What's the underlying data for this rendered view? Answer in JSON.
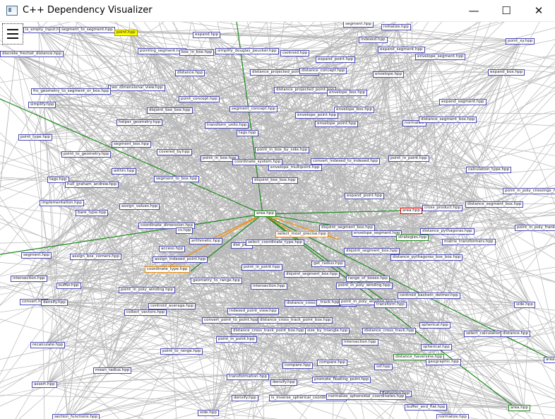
{
  "window": {
    "title": "C++ Dependency Visualizer",
    "minimize_glyph": "—",
    "maximize_glyph": "☐",
    "close_glyph": "✕"
  },
  "menu": {
    "icon": "hamburger-menu-icon"
  },
  "colors": {
    "edge_default": "#b8b8b8",
    "edge_highlight_green": "#1a8a1a",
    "edge_highlight_orange": "#f08c00",
    "selected_node_fill": "#ffff00",
    "node_border": "#4b4bb4",
    "focus_node_border": "#e00000"
  },
  "graph": {
    "selected_node": "point.hpp",
    "focus_node": "area.hpp",
    "nodes": [
      {
        "label": "is_empty_input.hpp"
      },
      {
        "label": "segment_to_segment.hpp"
      },
      {
        "label": "point.hpp"
      },
      {
        "label": "expand.hpp"
      },
      {
        "label": "segment.hpp"
      },
      {
        "label": "initialize.hpp"
      },
      {
        "label": "discrete_frechet_distance.hpp"
      },
      {
        "label": "pointing_segment.hpp"
      },
      {
        "label": "box_in_box.hpp"
      },
      {
        "label": "simplify_douglas_peucker.hpp"
      },
      {
        "label": "centroid.hpp"
      },
      {
        "label": "indexed.hpp"
      },
      {
        "label": "expand_segment.hpp"
      },
      {
        "label": "envelope_segment.hpp"
      },
      {
        "label": "point_xy.hpp"
      },
      {
        "label": "expand_point.hpp"
      },
      {
        "label": "distance.hpp"
      },
      {
        "label": "distance_projected_point_ax.hpp"
      },
      {
        "label": "distance_concept.hpp"
      },
      {
        "label": "envelope.hpp"
      },
      {
        "label": "expand_box.hpp"
      },
      {
        "label": "two_dimensional_view.hpp"
      },
      {
        "label": "fro_geometry_to_segment_or_box.hpp"
      },
      {
        "label": "distance_projected_point.hpp"
      },
      {
        "label": "envelope_box.hpp"
      },
      {
        "label": "point_concept.hpp"
      },
      {
        "label": "simplify.hpp"
      },
      {
        "label": "expand_segment.hpp"
      },
      {
        "label": "segment_concept.hpp"
      },
      {
        "label": "disjoint_box_box.hpp"
      },
      {
        "label": "envelope_point.hpp"
      },
      {
        "label": "envelope_box.hpp"
      },
      {
        "label": "normalize"
      },
      {
        "label": "distance_segment_box.hpp"
      },
      {
        "label": "helper_geometry.hpp"
      },
      {
        "label": "transform_units.hpp"
      },
      {
        "label": "envelope_point.hpp"
      },
      {
        "label": "tags.hpp"
      },
      {
        "label": "point_type.hpp"
      },
      {
        "label": "segment_box.hpp"
      },
      {
        "label": "covered_by.hpp"
      },
      {
        "label": "point_in_box_by_side.hpp"
      },
      {
        "label": "point_to_geometry.hpp"
      },
      {
        "label": "point_in_box.hpp"
      },
      {
        "label": "coordinate_system.hpp"
      },
      {
        "label": "convert_indexed_to_indexed.hpp"
      },
      {
        "label": "point_in_point.hpp"
      },
      {
        "label": "within.hpp"
      },
      {
        "label": "envelope_multipoint.hpp"
      },
      {
        "label": "calculation_type.hpp"
      },
      {
        "label": "tags.hpp"
      },
      {
        "label": "hull_graham_andrew.hpp"
      },
      {
        "label": "segment_to_box.hpp"
      },
      {
        "label": "disjoint_box_box.hpp"
      },
      {
        "label": "point_in_poly_crossings_multiply"
      },
      {
        "label": "expand_point.hpp"
      },
      {
        "label": "implementation.hpp"
      },
      {
        "label": "assign_values.hpp"
      },
      {
        "label": "area.hpp"
      },
      {
        "label": "cross_product.hpp"
      },
      {
        "label": "distance_segment_box.hpp"
      },
      {
        "label": "bare_type.hpp"
      },
      {
        "label": "area.hpp"
      },
      {
        "label": "coordinate_dimension.hpp"
      },
      {
        "label": "cs.hpp"
      },
      {
        "label": "select_most_precise.hpp"
      },
      {
        "label": "disjoint_segment_box.hpp"
      },
      {
        "label": "envelope_segment.hpp"
      },
      {
        "label": "point_in_poly_franklin.hpp"
      },
      {
        "label": "distance_pythagoras.hpp"
      },
      {
        "label": "arithmetic.hpp"
      },
      {
        "label": "dist_proc"
      },
      {
        "label": "select_coordinate_type.hpp"
      },
      {
        "label": "strategies.hpp"
      },
      {
        "label": "matrix_transformers.hpp"
      },
      {
        "label": "access.hpp"
      },
      {
        "label": "segment.hpp"
      },
      {
        "label": "assign_box_corners.hpp"
      },
      {
        "label": "disjoint_segment_box.hpp"
      },
      {
        "label": "distance_pythagoras_box_box.hpp"
      },
      {
        "label": "assign_indexed_point.hpp"
      },
      {
        "label": "get_radius.hpp"
      },
      {
        "label": "point_in_point.hpp"
      },
      {
        "label": "coordinate_type.hpp"
      },
      {
        "label": "disjoint_segment_box.hpp"
      },
      {
        "label": "intersection.hpp"
      },
      {
        "label": "geometry_to_range.hpp"
      },
      {
        "label": "range_of_boxes.hpp"
      },
      {
        "label": "buffer.hpp"
      },
      {
        "label": "intersection.hpp"
      },
      {
        "label": "point_in_poly_winding.hpp"
      },
      {
        "label": "point_in_poly_winding.hpp"
      },
      {
        "label": "centroid_bashein_detmer.hpp"
      },
      {
        "label": "convert.hpp"
      },
      {
        "label": "densify.hpp"
      },
      {
        "label": "centroid_average.hpp"
      },
      {
        "label": "distance_cross_track_box_box.hpp"
      },
      {
        "label": "_track.hpp"
      },
      {
        "label": "point_in_poly_winding.hpp"
      },
      {
        "label": "transform.hpp"
      },
      {
        "label": "side.hpp"
      },
      {
        "label": "collect_vectors.hpp"
      },
      {
        "label": "indexed_point_view.hpp"
      },
      {
        "label": "spherical.hpp"
      },
      {
        "label": "convert_point_to_point.hpp"
      },
      {
        "label": "distance_cross_track_point_box.hpp"
      },
      {
        "label": "distance_cross_track_point_box.hpp"
      },
      {
        "label": "size_by_triangle.hpp"
      },
      {
        "label": "distance_cross_track.hpp"
      },
      {
        "label": "select_calculation_type"
      },
      {
        "label": "distance.hpp"
      },
      {
        "label": "recalculate.hpp"
      },
      {
        "label": "point_in_point.hpp"
      },
      {
        "label": "intersection.hpp"
      },
      {
        "label": "spherical.hpp"
      },
      {
        "label": "point_to_range.hpp"
      },
      {
        "label": "distance_haversine.hpp"
      },
      {
        "label": "area.hpp"
      },
      {
        "label": "geographic.hpp"
      },
      {
        "label": "compare.hpp"
      },
      {
        "label": "compare.hpp"
      },
      {
        "label": "ssf.hpp"
      },
      {
        "label": "mean_radius.hpp"
      },
      {
        "label": "transformation.hpp"
      },
      {
        "label": "promote_floating_point.hpp"
      },
      {
        "label": "densify.hpp"
      },
      {
        "label": "assert.hpp"
      },
      {
        "label": "flattening.hpp"
      },
      {
        "label": "densify.hpp"
      },
      {
        "label": "is_inverse_spherical_coordinates.hpp"
      },
      {
        "label": "normalize_spheroidal_coordinates.hpp"
      },
      {
        "label": "area.hpp"
      },
      {
        "label": "buffer_end_flat.hpp"
      },
      {
        "label": "side.hpp"
      },
      {
        "label": "section_functions.hpp"
      },
      {
        "label": "normalize.hpp"
      }
    ]
  }
}
